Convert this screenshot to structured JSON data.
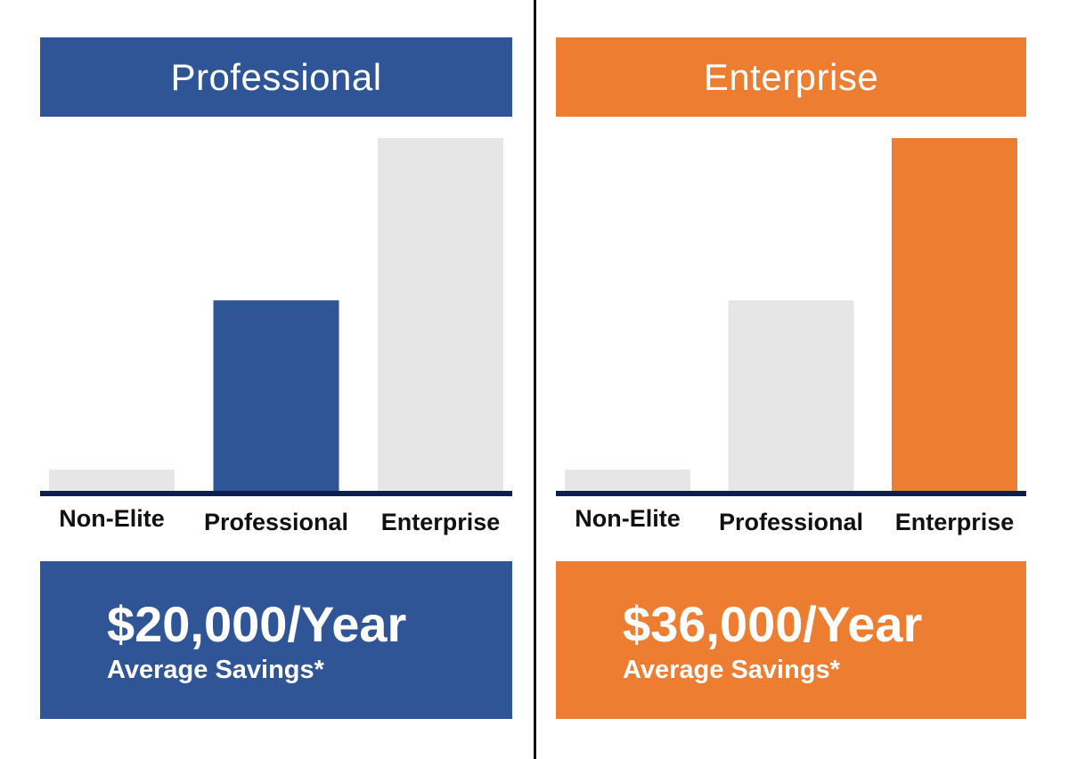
{
  "colors": {
    "professional": "#2f5597",
    "enterprise": "#ed7d31",
    "inactive_bar": "#e6e6e6",
    "baseline": "#0d1f4f",
    "divider": "#111111"
  },
  "panels": [
    {
      "header": "Professional",
      "accent": "#2f5597",
      "highlight_index": 1,
      "amount": "$20,000/Year",
      "subtitle": "Average Savings*"
    },
    {
      "header": "Enterprise",
      "accent": "#ed7d31",
      "highlight_index": 2,
      "amount": "$36,000/Year",
      "subtitle": "Average Savings*"
    }
  ],
  "chart_data": [
    {
      "type": "bar",
      "title": "Professional",
      "categories": [
        "Non-Elite",
        "Professional",
        "Enterprise"
      ],
      "values": [
        6,
        54,
        100
      ],
      "ylim": [
        0,
        100
      ],
      "grid": false,
      "highlighted_category": "Professional"
    },
    {
      "type": "bar",
      "title": "Enterprise",
      "categories": [
        "Non-Elite",
        "Professional",
        "Enterprise"
      ],
      "values": [
        6,
        54,
        100
      ],
      "ylim": [
        0,
        100
      ],
      "grid": false,
      "highlighted_category": "Enterprise"
    }
  ]
}
